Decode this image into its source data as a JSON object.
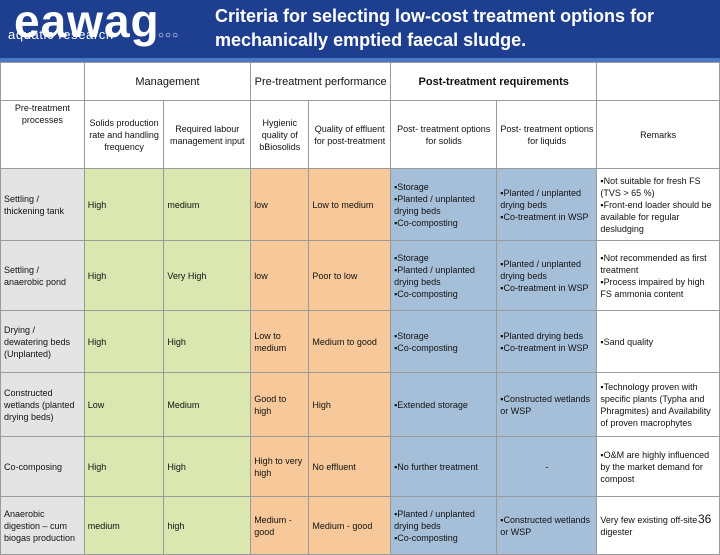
{
  "logo": {
    "name": "eawag",
    "subtitle": "aquatic research",
    "circles": "○○○"
  },
  "title": "Criteria for selecting low-cost treatment options for mechanically emptied faecal sludge.",
  "groups": {
    "management": "Management",
    "pretreatment_performance": "Pre-treatment performance",
    "post_treatment_requirements": "Post-treatment requirements"
  },
  "columns": {
    "processes": "Pre-treatment processes",
    "solids_production": "Solids production rate and handling frequency",
    "labour": "Required labour management input",
    "hygienic_quality": "Hygienic quality of bBiosolids",
    "effluent_quality": "Quality of effluent for post-treatment",
    "post_solids": "Post- treatment options for solids",
    "post_liquids": "Post- treatment options for liquids",
    "remarks": "Remarks"
  },
  "rows": [
    {
      "process": "Settling / thickening tank",
      "solids": "High",
      "labour": "medium",
      "hygienic": "low",
      "effluent": "Low to medium",
      "post_solids": "▪Storage\n▪Planted / unplanted drying beds\n▪Co-composting",
      "post_liquids": "▪Planted / unplanted drying beds\n▪Co-treatment in WSP",
      "remarks": "▪Not suitable for fresh FS (TVS > 65 %)\n▪Front-end loader should be available for regular desludging"
    },
    {
      "process": "Settling / anaerobic pond",
      "solids": "High",
      "labour": "Very High",
      "hygienic": "low",
      "effluent": "Poor to low",
      "post_solids": "▪Storage\n▪Planted / unplanted drying beds\n▪Co-composting",
      "post_liquids": "▪Planted / unplanted drying beds\n▪Co-treatment in WSP",
      "remarks": "▪Not recommended as first treatment\n▪Process impaired by high FS ammonia content"
    },
    {
      "process": "Drying / dewatering beds (Unplanted)",
      "solids": "High",
      "labour": "High",
      "hygienic": "Low to medium",
      "effluent": "Medium to good",
      "post_solids": "▪Storage\n▪Co-composting",
      "post_liquids": "▪Planted drying beds\n▪Co-treatment in WSP",
      "remarks": "▪Sand quality"
    },
    {
      "process": "Constructed wetlands (planted drying beds)",
      "solids": "Low",
      "labour": "Medium",
      "hygienic": "Good to high",
      "effluent": "High",
      "post_solids": "▪Extended storage",
      "post_liquids": "▪Constructed wetlands or WSP",
      "remarks": "▪Technology proven with specific plants (Typha and Phragmites) and Availability of proven macrophytes"
    },
    {
      "process": "Co-composing",
      "solids": "High",
      "labour": "High",
      "hygienic": "High to very high",
      "effluent": "No effluent",
      "post_solids": "▪No further treatment",
      "post_liquids": "-",
      "remarks": "▪O&M are highly influenced by the market demand for compost"
    },
    {
      "process": "Anaerobic digestion – cum biogas production",
      "solids": "medium",
      "labour": "high",
      "hygienic": "Medium - good",
      "effluent": "Medium - good",
      "post_solids": "▪Planted / unplanted drying beds\n▪Co-composting",
      "post_liquids": "▪Constructed wetlands or WSP",
      "remarks": "Very few existing off-site digester"
    }
  ],
  "page_number": "36",
  "colors": {
    "header": "#1e3f8f",
    "green": "#dbe7b0",
    "orange": "#f7c99a",
    "blue": "#a6bfd9",
    "gray": "#e4e4e4"
  }
}
